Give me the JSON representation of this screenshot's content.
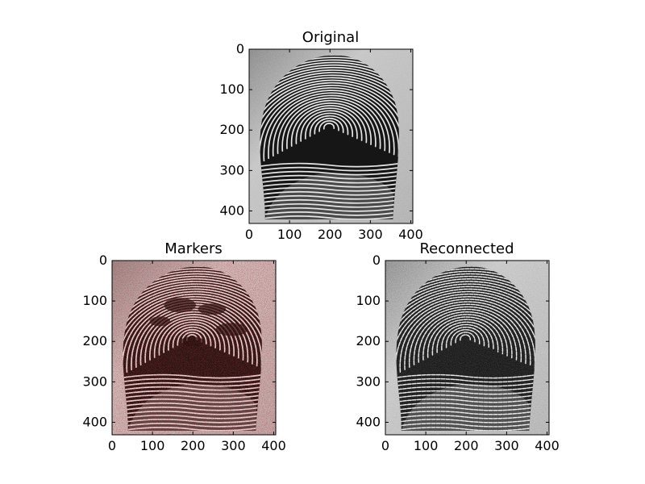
{
  "panels": [
    {
      "id": "original",
      "title": "Original",
      "kind": "original",
      "x_ticks": [
        "0",
        "100",
        "200",
        "300",
        "400"
      ],
      "y_ticks": [
        "0",
        "100",
        "200",
        "300",
        "400"
      ]
    },
    {
      "id": "markers",
      "title": "Markers",
      "kind": "markers",
      "marker_color": "#d01010",
      "x_ticks": [
        "0",
        "100",
        "200",
        "300",
        "400"
      ],
      "y_ticks": [
        "0",
        "100",
        "200",
        "300",
        "400"
      ]
    },
    {
      "id": "reconnected",
      "title": "Reconnected",
      "kind": "reconnected",
      "x_ticks": [
        "0",
        "100",
        "200",
        "300",
        "400"
      ],
      "y_ticks": [
        "0",
        "100",
        "200",
        "300",
        "400"
      ]
    }
  ]
}
